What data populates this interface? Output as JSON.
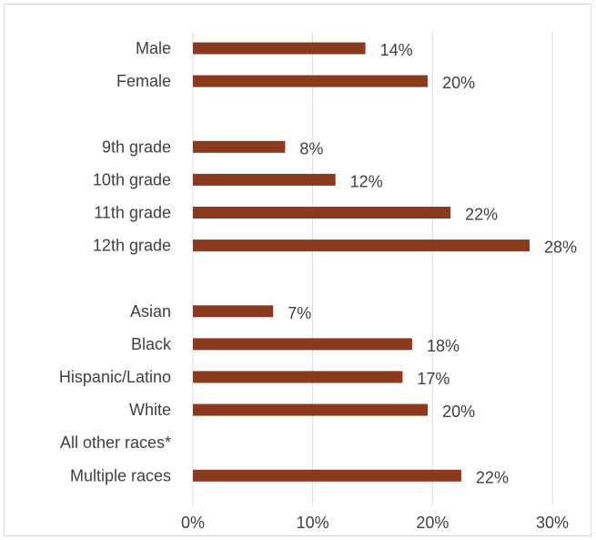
{
  "chart_data": {
    "type": "bar",
    "orientation": "horizontal",
    "title": "",
    "xlabel": "",
    "ylabel": "",
    "categories": [
      "Male",
      "Female",
      "",
      "9th grade",
      "10th grade",
      "11th grade",
      "12th grade",
      "",
      "Asian",
      "Black",
      "Hispanic/Latino",
      "White",
      "All other races*",
      "Multiple races"
    ],
    "values": [
      14.4,
      19.6,
      null,
      7.7,
      11.9,
      21.5,
      28.1,
      null,
      6.7,
      18.3,
      17.5,
      19.6,
      null,
      22.4
    ],
    "data_labels": [
      "14%",
      "20%",
      "",
      "8%",
      "12%",
      "22%",
      "28%",
      "",
      "7%",
      "18%",
      "17%",
      "20%",
      "",
      "22%"
    ],
    "xlim": [
      0,
      30
    ],
    "xticks": [
      0,
      10,
      20,
      30
    ],
    "xtick_labels": [
      "0%",
      "10%",
      "20%",
      "30%"
    ],
    "grid": "vertical",
    "legend": "none",
    "bar_color": "#8b3a1e",
    "grid_color": "#d9d9d9",
    "text_color": "#404040"
  }
}
